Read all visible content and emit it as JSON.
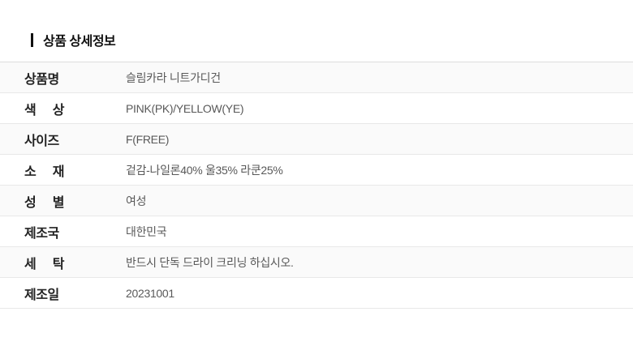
{
  "section": {
    "title": "상품 상세정보"
  },
  "table": {
    "rows": [
      {
        "label": "상품명",
        "value": "슬림카라 니트가디건"
      },
      {
        "label": "색 상",
        "value": "PINK(PK)/YELLOW(YE)"
      },
      {
        "label": "사이즈",
        "value": "F(FREE)"
      },
      {
        "label": "소 재",
        "value": "겉감-나일론40% 울35% 라쿤25%"
      },
      {
        "label": "성 별",
        "value": "여성"
      },
      {
        "label": "제조국",
        "value": "대한민국"
      },
      {
        "label": "세 탁",
        "value": "반드시 단독 드라이 크리닝 하십시오."
      },
      {
        "label": "제조일",
        "value": "20231001"
      }
    ]
  },
  "colors": {
    "accent_bar": "#111111",
    "title_text": "#111111",
    "label_text": "#222222",
    "value_text": "#595959",
    "row_alt_bg": "#fafafa",
    "row_bg": "#ffffff",
    "border": "#e8e8e8",
    "table_top_border": "#dcdcdc"
  }
}
